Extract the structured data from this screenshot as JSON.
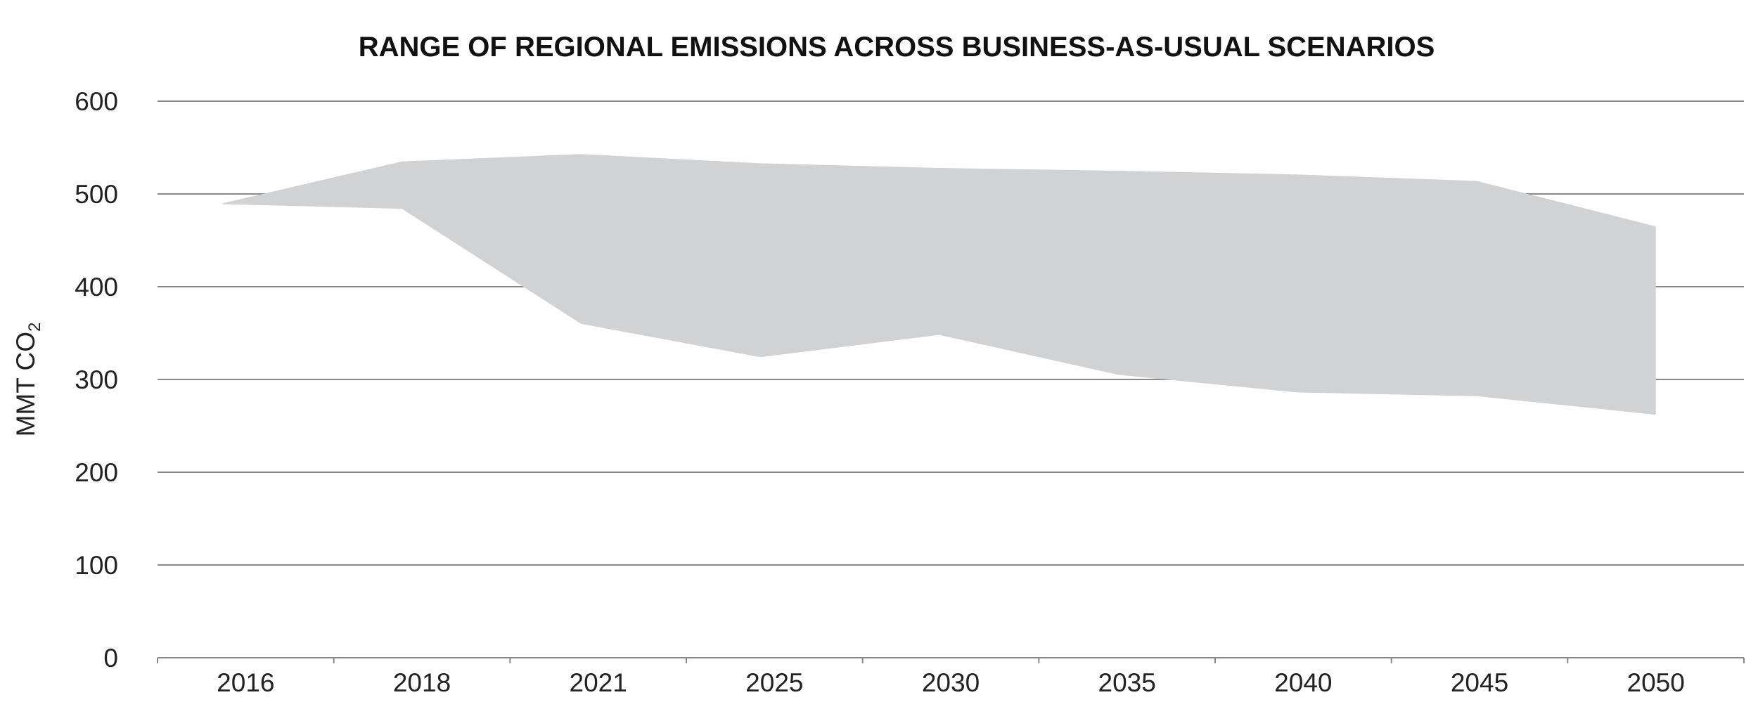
{
  "chart_data": {
    "type": "area",
    "title": "RANGE OF REGIONAL EMISSIONS ACROSS BUSINESS-AS-USUAL SCENARIOS",
    "xlabel": "",
    "ylabel": {
      "main": "MMT CO",
      "subscript": "2"
    },
    "categories": [
      "2016",
      "2018",
      "2021",
      "2025",
      "2030",
      "2035",
      "2040",
      "2045",
      "2050"
    ],
    "ylim": [
      0,
      600
    ],
    "yticks": [
      0,
      100,
      200,
      300,
      400,
      500,
      600
    ],
    "grid": true,
    "band": {
      "upper": [
        490,
        535,
        543,
        533,
        528,
        525,
        521,
        514,
        465
      ],
      "lower": [
        489,
        484,
        360,
        324,
        348,
        305,
        286,
        282,
        262
      ]
    },
    "colors": {
      "band_fill": "#d1d2d4",
      "gridline": "#8a8a8a",
      "axis_line": "#8a8a8a",
      "text": "#222222"
    }
  }
}
